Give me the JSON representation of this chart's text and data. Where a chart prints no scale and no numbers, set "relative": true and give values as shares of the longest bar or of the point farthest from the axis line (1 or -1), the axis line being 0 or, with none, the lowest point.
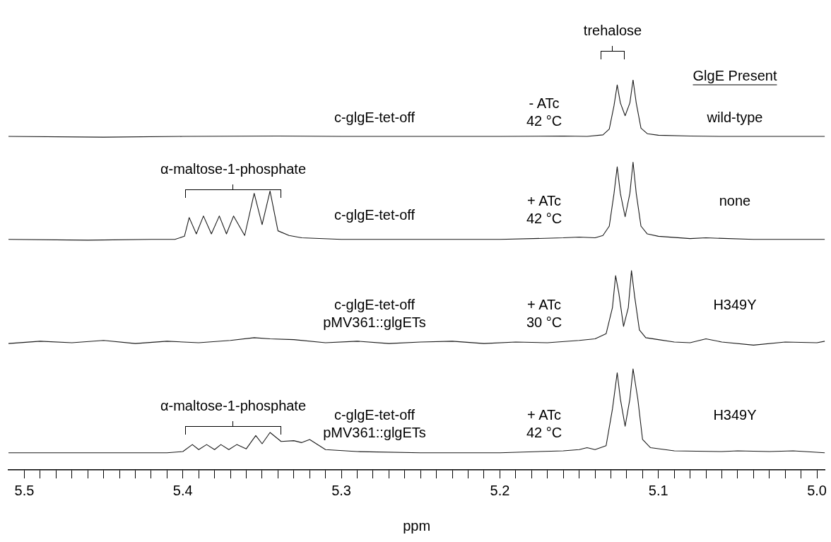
{
  "chart_data": {
    "type": "line",
    "relative": true,
    "xlim": [
      5.51,
      4.995
    ],
    "xlabel": "ppm",
    "xticks": [
      5.5,
      {
        "value": 5.49,
        "label": null
      },
      {
        "value": 5.48,
        "label": null
      },
      {
        "value": 5.47,
        "label": null
      },
      {
        "value": 5.46,
        "label": null
      },
      {
        "value": 5.45,
        "label": null
      },
      {
        "value": 5.44,
        "label": null
      },
      {
        "value": 5.43,
        "label": null
      },
      {
        "value": 5.42,
        "label": null
      },
      {
        "value": 5.41,
        "label": null
      },
      5.4,
      {
        "value": 5.39,
        "label": null
      },
      {
        "value": 5.38,
        "label": null
      },
      {
        "value": 5.37,
        "label": null
      },
      {
        "value": 5.36,
        "label": null
      },
      {
        "value": 5.35,
        "label": null
      },
      {
        "value": 5.34,
        "label": null
      },
      {
        "value": 5.33,
        "label": null
      },
      {
        "value": 5.32,
        "label": null
      },
      {
        "value": 5.31,
        "label": null
      },
      5.3,
      {
        "value": 5.29,
        "label": null
      },
      {
        "value": 5.28,
        "label": null
      },
      {
        "value": 5.27,
        "label": null
      },
      {
        "value": 5.26,
        "label": null
      },
      {
        "value": 5.25,
        "label": null
      },
      {
        "value": 5.24,
        "label": null
      },
      {
        "value": 5.23,
        "label": null
      },
      {
        "value": 5.22,
        "label": null
      },
      {
        "value": 5.21,
        "label": null
      },
      5.2,
      {
        "value": 5.19,
        "label": null
      },
      {
        "value": 5.18,
        "label": null
      },
      {
        "value": 5.17,
        "label": null
      },
      {
        "value": 5.16,
        "label": null
      },
      {
        "value": 5.15,
        "label": null
      },
      {
        "value": 5.14,
        "label": null
      },
      {
        "value": 5.13,
        "label": null
      },
      {
        "value": 5.12,
        "label": null
      },
      {
        "value": 5.11,
        "label": null
      },
      5.1,
      {
        "value": 5.09,
        "label": null
      },
      {
        "value": 5.08,
        "label": null
      },
      {
        "value": 5.07,
        "label": null
      },
      {
        "value": 5.06,
        "label": null
      },
      {
        "value": 5.05,
        "label": null
      },
      {
        "value": 5.04,
        "label": null
      },
      {
        "value": 5.03,
        "label": null
      },
      {
        "value": 5.02,
        "label": null
      },
      {
        "value": 5.01,
        "label": null
      },
      {
        "value": 5,
        "label": "5.0"
      }
    ],
    "series": [
      {
        "color": "#1a1a1a",
        "x": [
          5.51,
          5.45,
          5.4,
          5.34,
          5.3,
          5.25,
          5.2,
          5.16,
          5.145,
          5.135,
          5.131,
          5.128,
          5.126,
          5.124,
          5.121,
          5.118,
          5.116,
          5.114,
          5.111,
          5.107,
          5.1,
          5.08,
          5.06,
          5.03,
          4.995
        ],
        "values": [
          0.855,
          0.853,
          0.855,
          0.856,
          0.855,
          0.855,
          0.855,
          0.856,
          0.855,
          0.859,
          0.874,
          0.934,
          0.987,
          0.941,
          0.908,
          0.941,
          1,
          0.941,
          0.876,
          0.862,
          0.858,
          0.856,
          0.855,
          0.855,
          0.855
        ]
      },
      {
        "color": "#1a1a1a",
        "x": [
          5.51,
          5.46,
          5.42,
          5.405,
          5.399,
          5.396,
          5.3915,
          5.387,
          5.382,
          5.377,
          5.3725,
          5.368,
          5.361,
          5.355,
          5.35,
          5.345,
          5.34,
          5.333,
          5.325,
          5.3,
          5.25,
          5.2,
          5.16,
          5.15,
          5.14,
          5.135,
          5.131,
          5.128,
          5.126,
          5.124,
          5.121,
          5.118,
          5.116,
          5.114,
          5.111,
          5.107,
          5.1,
          5.08,
          5.07,
          5.04,
          4.995
        ],
        "values": [
          0.591,
          0.589,
          0.591,
          0.591,
          0.599,
          0.647,
          0.605,
          0.651,
          0.605,
          0.651,
          0.605,
          0.651,
          0.601,
          0.709,
          0.629,
          0.715,
          0.613,
          0.601,
          0.595,
          0.591,
          0.591,
          0.591,
          0.595,
          0.597,
          0.595,
          0.601,
          0.625,
          0.709,
          0.777,
          0.709,
          0.649,
          0.709,
          0.789,
          0.709,
          0.625,
          0.605,
          0.599,
          0.593,
          0.595,
          0.591,
          0.591
        ]
      },
      {
        "color": "#1a1a1a",
        "x": [
          5.51,
          5.49,
          5.47,
          5.45,
          5.43,
          5.41,
          5.39,
          5.37,
          5.355,
          5.345,
          5.33,
          5.31,
          5.29,
          5.27,
          5.25,
          5.23,
          5.21,
          5.19,
          5.17,
          5.15,
          5.14,
          5.133,
          5.129,
          5.127,
          5.125,
          5.122,
          5.119,
          5.117,
          5.115,
          5.112,
          5.108,
          5.1,
          5.09,
          5.08,
          5.07,
          5.06,
          5.04,
          5.02,
          5.0,
          4.995
        ],
        "values": [
          0.324,
          0.33,
          0.326,
          0.332,
          0.324,
          0.33,
          0.326,
          0.332,
          0.339,
          0.336,
          0.334,
          0.326,
          0.33,
          0.324,
          0.328,
          0.33,
          0.324,
          0.328,
          0.326,
          0.332,
          0.336,
          0.349,
          0.416,
          0.498,
          0.454,
          0.368,
          0.416,
          0.511,
          0.445,
          0.359,
          0.339,
          0.334,
          0.328,
          0.326,
          0.336,
          0.328,
          0.32,
          0.328,
          0.326,
          0.33
        ]
      },
      {
        "color": "#1a1a1a",
        "x": [
          5.51,
          5.45,
          5.41,
          5.4,
          5.394,
          5.39,
          5.385,
          5.38,
          5.376,
          5.371,
          5.366,
          5.36,
          5.354,
          5.35,
          5.345,
          5.338,
          5.33,
          5.325,
          5.32,
          5.31,
          5.29,
          5.25,
          5.2,
          5.16,
          5.15,
          5.145,
          5.14,
          5.133,
          5.129,
          5.126,
          5.124,
          5.121,
          5.118,
          5.116,
          5.113,
          5.11,
          5.105,
          5.09,
          5.06,
          5.05,
          5.03,
          5.015,
          4.995
        ],
        "values": [
          0.044,
          0.044,
          0.044,
          0.047,
          0.065,
          0.052,
          0.065,
          0.052,
          0.065,
          0.052,
          0.065,
          0.054,
          0.088,
          0.067,
          0.096,
          0.073,
          0.075,
          0.07,
          0.078,
          0.052,
          0.047,
          0.044,
          0.044,
          0.049,
          0.052,
          0.057,
          0.052,
          0.062,
          0.156,
          0.249,
          0.182,
          0.112,
          0.182,
          0.259,
          0.182,
          0.078,
          0.057,
          0.049,
          0.047,
          0.049,
          0.047,
          0.049,
          0.044
        ]
      }
    ],
    "annotations": [
      "GlgE Present",
      "c-glgE-tet-off",
      "- ATc\n42 °C",
      "wild-type",
      "c-glgE-tet-off",
      "+ ATc\n42 °C",
      "none",
      "c-glgE-tet-off\npMV361::glgETs",
      "+ ATc\n30 °C",
      "H349Y",
      "c-glgE-tet-off\npMV361::glgETs",
      "+ ATc\n42 °C",
      "H349Y",
      "trehalose",
      "α-maltose-1-phosphate",
      "α-maltose-1-phosphate"
    ]
  }
}
